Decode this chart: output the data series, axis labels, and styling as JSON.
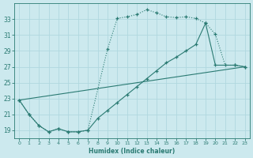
{
  "xlabel": "Humidex (Indice chaleur)",
  "bg_color": "#cce9ee",
  "grid_color": "#b0d8df",
  "line_color": "#2a7a72",
  "xlim": [
    -0.5,
    23.5
  ],
  "ylim": [
    18.0,
    35.0
  ],
  "yticks": [
    19,
    21,
    23,
    25,
    27,
    29,
    31,
    33
  ],
  "xticks": [
    0,
    1,
    2,
    3,
    4,
    5,
    6,
    7,
    8,
    9,
    10,
    11,
    12,
    13,
    14,
    15,
    16,
    17,
    18,
    19,
    20,
    21,
    22,
    23
  ],
  "line1_x": [
    0,
    1,
    2,
    3,
    4,
    5,
    6,
    7,
    9,
    10,
    11,
    12,
    13,
    14,
    15,
    16,
    17,
    18,
    19,
    20,
    21,
    22,
    23
  ],
  "line1_y": [
    22.8,
    21.0,
    19.6,
    18.8,
    19.2,
    18.8,
    18.8,
    19.0,
    29.2,
    33.1,
    33.3,
    33.6,
    34.2,
    33.8,
    33.3,
    33.2,
    33.3,
    33.1,
    32.5,
    31.1,
    27.2,
    27.2,
    27.0
  ],
  "line2_x": [
    0,
    1,
    2,
    3,
    4,
    5,
    6,
    7,
    8,
    9,
    10,
    11,
    12,
    13,
    14,
    15,
    16,
    17,
    18,
    19,
    20,
    22,
    23
  ],
  "line2_y": [
    22.8,
    21.0,
    19.6,
    18.8,
    19.2,
    18.8,
    18.8,
    19.0,
    20.5,
    21.5,
    22.5,
    23.5,
    24.5,
    25.5,
    26.5,
    27.5,
    28.2,
    29.0,
    29.8,
    32.5,
    27.2,
    27.2,
    27.0
  ],
  "line3_x": [
    0,
    23
  ],
  "line3_y": [
    22.8,
    27.0
  ]
}
